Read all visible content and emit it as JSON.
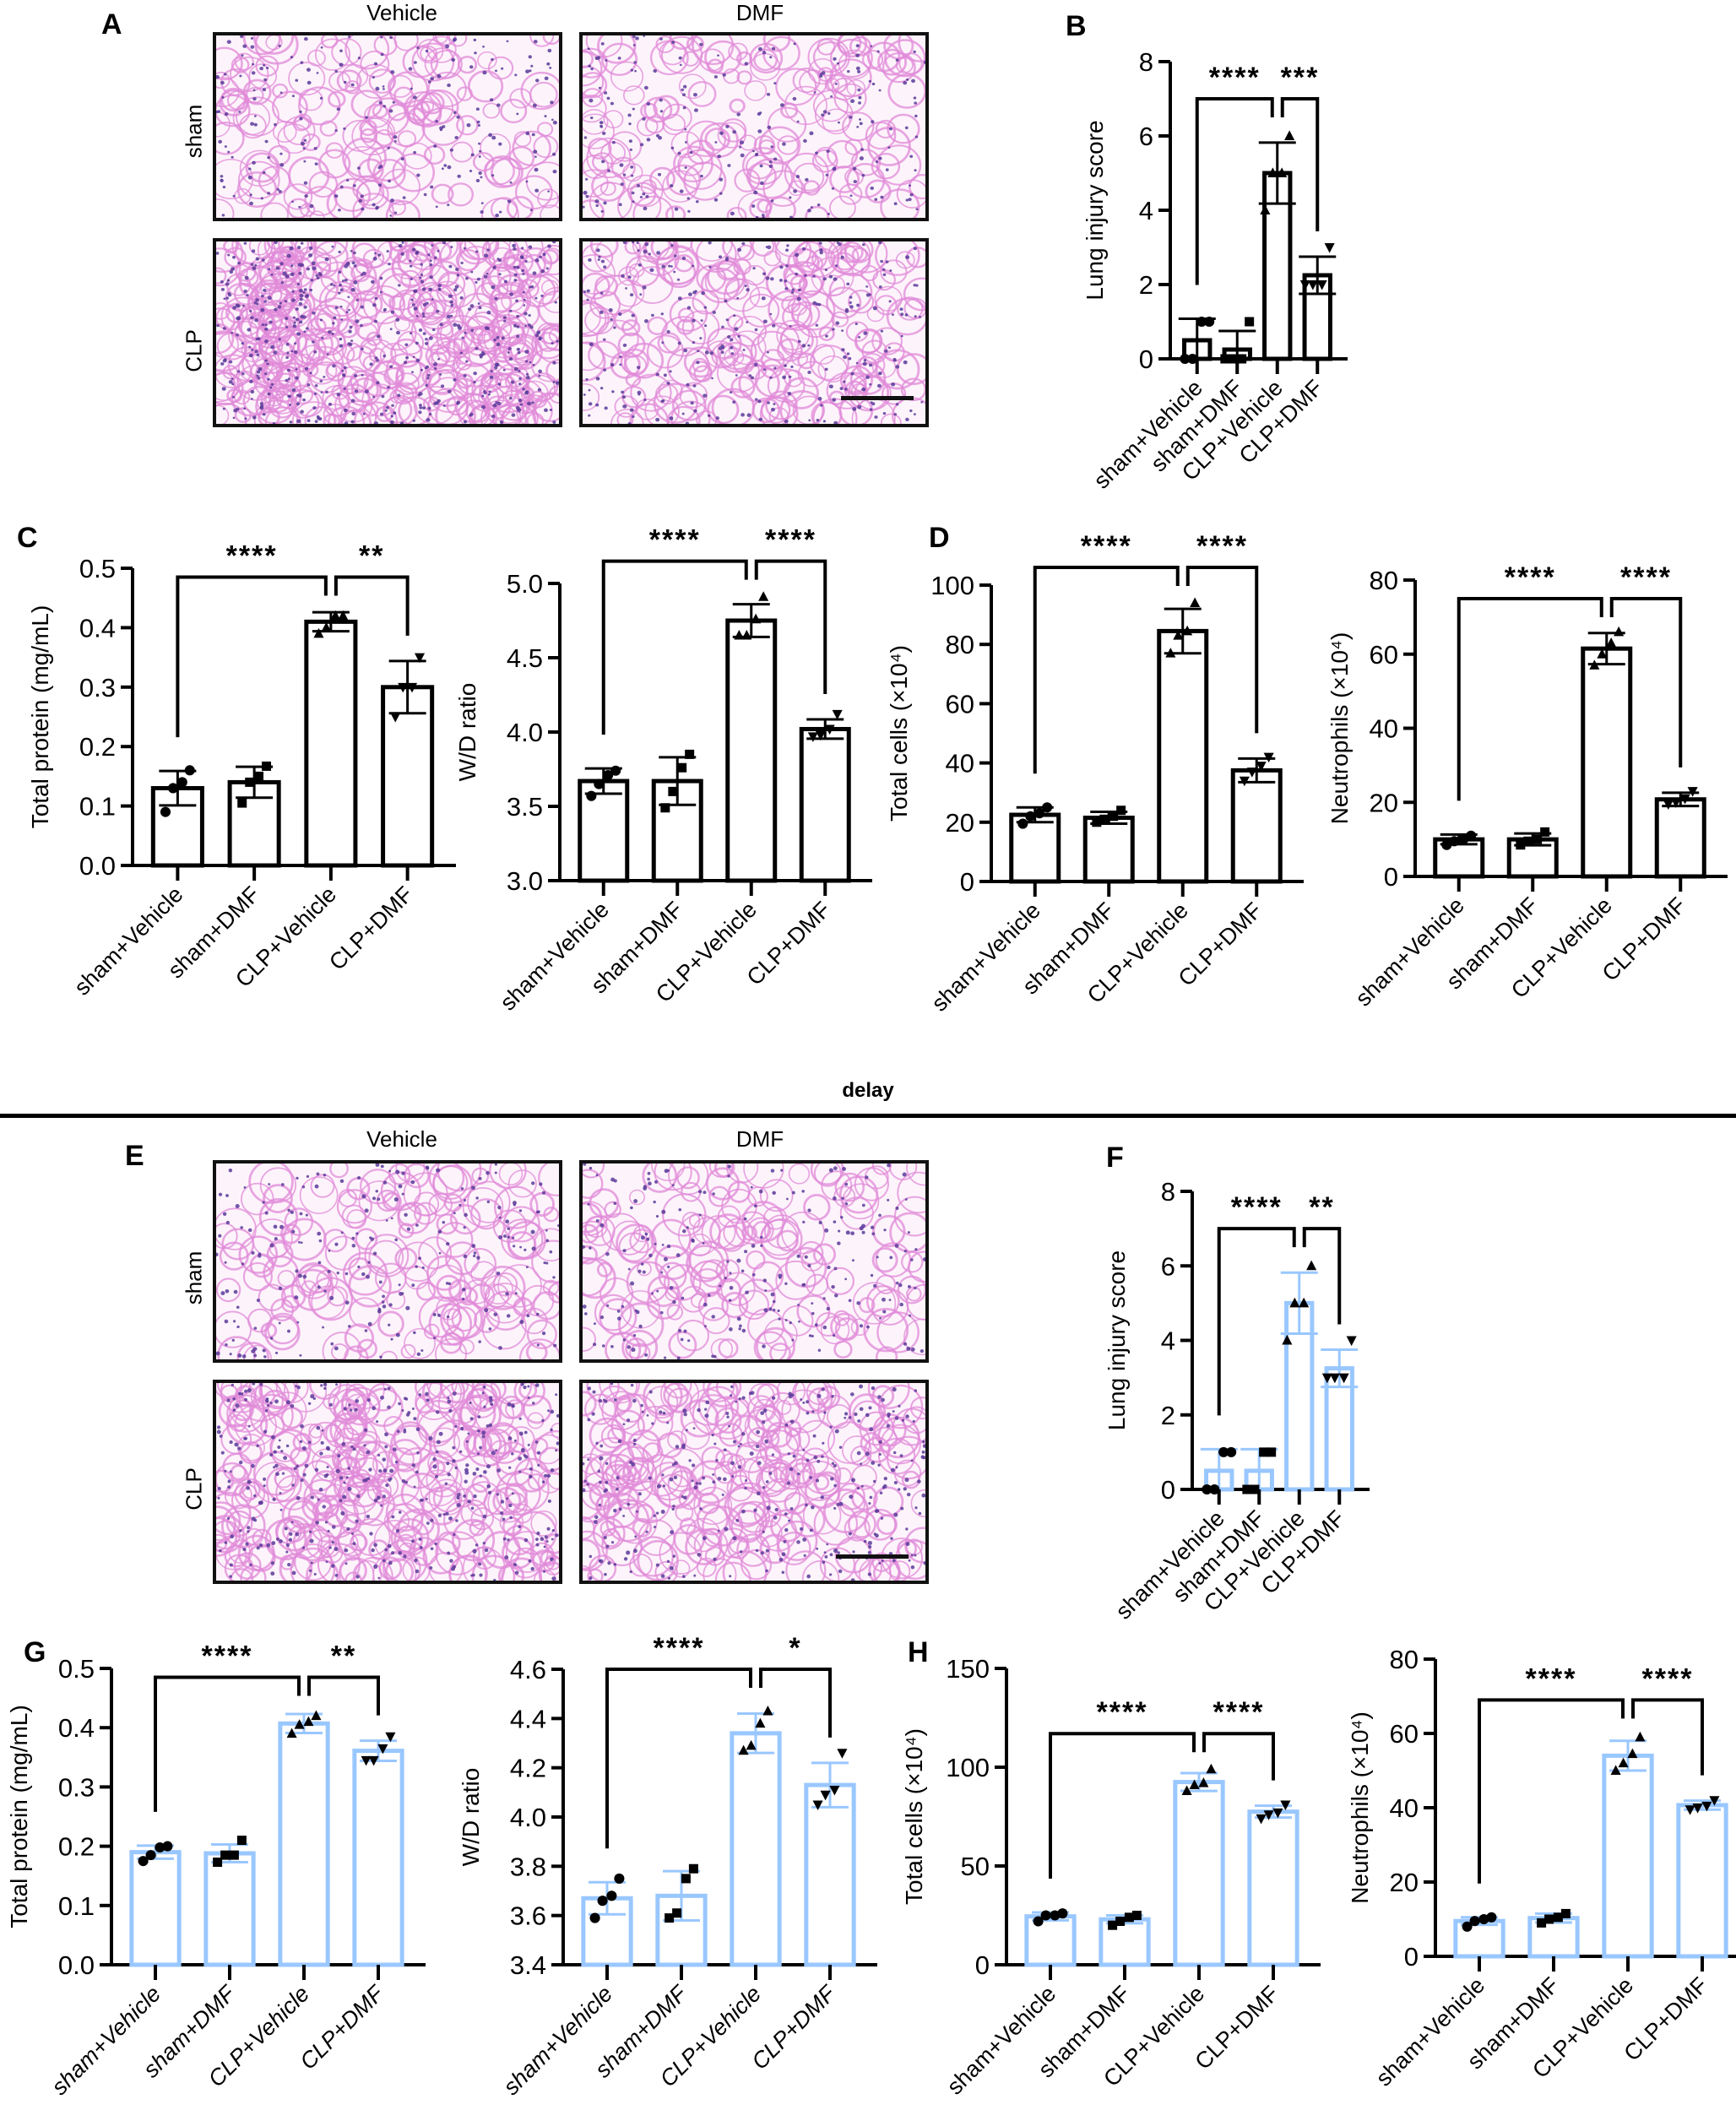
{
  "figure": {
    "panel_letters": [
      "A",
      "B",
      "C",
      "D",
      "E",
      "F",
      "G",
      "H"
    ],
    "histology_top": {
      "col_labels": [
        "Vehicle",
        "DMF"
      ],
      "row_labels": [
        "sham",
        "CLP"
      ]
    },
    "histology_bottom": {
      "col_labels": [
        "Vehicle",
        "DMF"
      ],
      "row_labels": [
        "sham",
        "CLP"
      ]
    },
    "section_divider_label": "delay",
    "colors": {
      "top_bars": "#000000",
      "bottom_bars": "#99c7ff",
      "points": "#000000"
    }
  },
  "chart_data": [
    {
      "id": "B",
      "type": "bar",
      "title": "",
      "ylabel": "Lung injury score",
      "xlabel": "",
      "categories": [
        "sham+Vehicle",
        "sham+DMF",
        "CLP+Vehicle",
        "CLP+DMF"
      ],
      "values": [
        0.5,
        0.25,
        5.0,
        2.25
      ],
      "sd": [
        0.58,
        0.5,
        0.82,
        0.5
      ],
      "points": [
        [
          0,
          0,
          1,
          1
        ],
        [
          0,
          0,
          0,
          1
        ],
        [
          4,
          5,
          5,
          6
        ],
        [
          2,
          2,
          2,
          3
        ]
      ],
      "markers": [
        "circle",
        "square",
        "triangle-up",
        "triangle-down"
      ],
      "ylim": [
        0,
        8
      ],
      "yticks": [
        0,
        2,
        4,
        6,
        8
      ],
      "ytick_labels": [
        "0",
        "2",
        "4",
        "6",
        "8"
      ],
      "significance": [
        {
          "from": 0,
          "to": 2,
          "label": "****",
          "level": 7.0
        },
        {
          "from": 2,
          "to": 3,
          "label": "***",
          "level": 7.0
        }
      ],
      "bar_color": "#000000",
      "grid": false,
      "italic_labels": false
    },
    {
      "id": "C1",
      "type": "bar",
      "ylabel": "Total protein (mg/mL)",
      "categories": [
        "sham+Vehicle",
        "sham+DMF",
        "CLP+Vehicle",
        "CLP+DMF"
      ],
      "values": [
        0.13,
        0.14,
        0.41,
        0.3
      ],
      "sd": [
        0.029,
        0.026,
        0.016,
        0.044
      ],
      "points": [
        [
          0.09,
          0.13,
          0.14,
          0.16
        ],
        [
          0.105,
          0.14,
          0.15,
          0.167
        ],
        [
          0.39,
          0.4,
          0.42,
          0.42
        ],
        [
          0.25,
          0.3,
          0.3,
          0.35
        ]
      ],
      "markers": [
        "circle",
        "square",
        "triangle-up",
        "triangle-down"
      ],
      "ylim": [
        0,
        0.5
      ],
      "yticks": [
        0,
        0.1,
        0.2,
        0.3,
        0.4,
        0.5
      ],
      "ytick_labels": [
        "0.0",
        "0.1",
        "0.2",
        "0.3",
        "0.4",
        "0.5"
      ],
      "significance": [
        {
          "from": 0,
          "to": 2,
          "label": "****",
          "level": 0.485
        },
        {
          "from": 2,
          "to": 3,
          "label": "**",
          "level": 0.485
        }
      ],
      "bar_color": "#000000",
      "grid": false,
      "italic_labels": false
    },
    {
      "id": "C2",
      "type": "bar",
      "ylabel": "W/D ratio",
      "categories": [
        "sham+Vehicle",
        "sham+DMF",
        "CLP+Vehicle",
        "CLP+DMF"
      ],
      "values": [
        3.67,
        3.67,
        4.75,
        4.02
      ],
      "sd": [
        0.085,
        0.16,
        0.11,
        0.065
      ],
      "points": [
        [
          3.57,
          3.65,
          3.71,
          3.74
        ],
        [
          3.49,
          3.6,
          3.76,
          3.85
        ],
        [
          4.65,
          4.65,
          4.76,
          4.91
        ],
        [
          3.97,
          3.98,
          4.02,
          4.12
        ]
      ],
      "markers": [
        "circle",
        "square",
        "triangle-up",
        "triangle-down"
      ],
      "ylim": [
        3.0,
        5.0
      ],
      "yticks": [
        3.0,
        3.5,
        4.0,
        4.5,
        5.0
      ],
      "ytick_labels": [
        "3.0",
        "3.5",
        "4.0",
        "4.5",
        "5.0"
      ],
      "significance": [
        {
          "from": 0,
          "to": 2,
          "label": "****",
          "level": 5.15
        },
        {
          "from": 2,
          "to": 3,
          "label": "****",
          "level": 5.15
        }
      ],
      "bar_color": "#000000",
      "grid": false,
      "italic_labels": false
    },
    {
      "id": "D1",
      "type": "bar",
      "ylabel": "Total cells (×10⁴)",
      "categories": [
        "sham+Vehicle",
        "sham+DMF",
        "CLP+Vehicle",
        "CLP+DMF"
      ],
      "values": [
        22.5,
        21.5,
        84.5,
        37.5
      ],
      "sd": [
        2.5,
        2.0,
        7.5,
        4.0
      ],
      "points": [
        [
          19.5,
          22,
          23,
          25
        ],
        [
          20,
          21,
          22,
          24
        ],
        [
          77,
          83,
          84.5,
          94
        ],
        [
          34,
          37,
          39,
          42
        ]
      ],
      "markers": [
        "circle",
        "square",
        "triangle-up",
        "triangle-down"
      ],
      "ylim": [
        0,
        100
      ],
      "yticks": [
        0,
        20,
        40,
        60,
        80,
        100
      ],
      "ytick_labels": [
        "0",
        "20",
        "40",
        "60",
        "80",
        "100"
      ],
      "significance": [
        {
          "from": 0,
          "to": 2,
          "label": "****",
          "level": 106
        },
        {
          "from": 2,
          "to": 3,
          "label": "****",
          "level": 106
        }
      ],
      "bar_color": "#000000",
      "grid": false,
      "italic_labels": false
    },
    {
      "id": "D2",
      "type": "bar",
      "ylabel": "Neutrophils (×10⁴)",
      "categories": [
        "sham+Vehicle",
        "sham+DMF",
        "CLP+Vehicle",
        "CLP+DMF"
      ],
      "values": [
        10.0,
        10.0,
        61.5,
        20.8
      ],
      "sd": [
        1.3,
        1.6,
        4.2,
        1.8
      ],
      "points": [
        [
          8.5,
          9.5,
          10,
          11
        ],
        [
          8.5,
          9.5,
          10,
          12
        ],
        [
          57,
          60,
          63,
          66
        ],
        [
          19.5,
          20,
          21,
          23
        ]
      ],
      "markers": [
        "circle",
        "square",
        "triangle-up",
        "triangle-down"
      ],
      "ylim": [
        0,
        80
      ],
      "yticks": [
        0,
        20,
        40,
        60,
        80
      ],
      "ytick_labels": [
        "0",
        "20",
        "40",
        "60",
        "80"
      ],
      "significance": [
        {
          "from": 0,
          "to": 2,
          "label": "****",
          "level": 75
        },
        {
          "from": 2,
          "to": 3,
          "label": "****",
          "level": 75
        }
      ],
      "bar_color": "#000000",
      "grid": false,
      "italic_labels": false
    },
    {
      "id": "F",
      "type": "bar",
      "ylabel": "Lung injury score",
      "categories": [
        "sham+Vehicle",
        "sham+DMF",
        "CLP+Vehicle",
        "CLP+DMF"
      ],
      "values": [
        0.5,
        0.5,
        5.0,
        3.25
      ],
      "sd": [
        0.58,
        0.58,
        0.82,
        0.5
      ],
      "points": [
        [
          0,
          0,
          1,
          1
        ],
        [
          0,
          0,
          1,
          1
        ],
        [
          4,
          5,
          5,
          6
        ],
        [
          3,
          3,
          3,
          4
        ]
      ],
      "markers": [
        "circle",
        "square",
        "triangle-up",
        "triangle-down"
      ],
      "ylim": [
        0,
        8
      ],
      "yticks": [
        0,
        2,
        4,
        6,
        8
      ],
      "ytick_labels": [
        "0",
        "2",
        "4",
        "6",
        "8"
      ],
      "significance": [
        {
          "from": 0,
          "to": 2,
          "label": "****",
          "level": 7.0
        },
        {
          "from": 2,
          "to": 3,
          "label": "**",
          "level": 7.0
        }
      ],
      "bar_color": "#99c7ff",
      "grid": false,
      "italic_labels": false
    },
    {
      "id": "G1",
      "type": "bar",
      "ylabel": "Total protein (mg/mL)",
      "categories": [
        "sham+Vehicle",
        "sham+DMF",
        "CLP+Vehicle",
        "CLP+DMF"
      ],
      "values": [
        0.19,
        0.188,
        0.407,
        0.361
      ],
      "sd": [
        0.011,
        0.015,
        0.016,
        0.017
      ],
      "points": [
        [
          0.175,
          0.185,
          0.198,
          0.2
        ],
        [
          0.173,
          0.185,
          0.185,
          0.21
        ],
        [
          0.39,
          0.405,
          0.41,
          0.42
        ],
        [
          0.345,
          0.345,
          0.365,
          0.385
        ]
      ],
      "markers": [
        "circle",
        "square",
        "triangle-up",
        "triangle-down"
      ],
      "ylim": [
        0,
        0.5
      ],
      "yticks": [
        0,
        0.1,
        0.2,
        0.3,
        0.4,
        0.5
      ],
      "ytick_labels": [
        "0.0",
        "0.1",
        "0.2",
        "0.3",
        "0.4",
        "0.5"
      ],
      "significance": [
        {
          "from": 0,
          "to": 2,
          "label": "****",
          "level": 0.485
        },
        {
          "from": 2,
          "to": 3,
          "label": "**",
          "level": 0.485
        }
      ],
      "bar_color": "#99c7ff",
      "grid": false,
      "italic_labels": true
    },
    {
      "id": "G2",
      "type": "bar",
      "ylabel": "W/D ratio",
      "categories": [
        "sham+Vehicle",
        "sham+DMF",
        "CLP+Vehicle",
        "CLP+DMF"
      ],
      "values": [
        3.67,
        3.68,
        4.34,
        4.13
      ],
      "sd": [
        0.065,
        0.1,
        0.08,
        0.09
      ],
      "points": [
        [
          3.59,
          3.66,
          3.68,
          3.75
        ],
        [
          3.59,
          3.61,
          3.75,
          3.79
        ],
        [
          4.27,
          4.29,
          4.38,
          4.43
        ],
        [
          4.05,
          4.09,
          4.11,
          4.26
        ]
      ],
      "markers": [
        "circle",
        "square",
        "triangle-up",
        "triangle-down"
      ],
      "ylim": [
        3.4,
        4.6
      ],
      "yticks": [
        3.4,
        3.6,
        3.8,
        4.0,
        4.2,
        4.4,
        4.6
      ],
      "ytick_labels": [
        "3.4",
        "3.6",
        "3.8",
        "4.0",
        "4.2",
        "4.4",
        "4.6"
      ],
      "significance": [
        {
          "from": 0,
          "to": 2,
          "label": "****",
          "level": 4.6
        },
        {
          "from": 2,
          "to": 3,
          "label": "*",
          "level": 4.6
        }
      ],
      "bar_color": "#99c7ff",
      "grid": false,
      "italic_labels": true
    },
    {
      "id": "H1",
      "type": "bar",
      "ylabel": "Total cells (×10⁴)",
      "categories": [
        "sham+Vehicle",
        "sham+DMF",
        "CLP+Vehicle",
        "CLP+DMF"
      ],
      "values": [
        24.5,
        23.0,
        92.5,
        77.5
      ],
      "sd": [
        2.0,
        2.0,
        4.5,
        3.0
      ],
      "points": [
        [
          22,
          25,
          25,
          26
        ],
        [
          20,
          22,
          24,
          25
        ],
        [
          88,
          91,
          92,
          99
        ],
        [
          74,
          76,
          77,
          81
        ]
      ],
      "markers": [
        "circle",
        "square",
        "triangle-up",
        "triangle-down"
      ],
      "ylim": [
        0,
        150
      ],
      "yticks": [
        0,
        50,
        100,
        150
      ],
      "ytick_labels": [
        "0",
        "50",
        "100",
        "150"
      ],
      "significance": [
        {
          "from": 0,
          "to": 2,
          "label": "****",
          "level": 117
        },
        {
          "from": 2,
          "to": 3,
          "label": "****",
          "level": 117
        }
      ],
      "bar_color": "#99c7ff",
      "grid": false,
      "italic_labels": false
    },
    {
      "id": "H2",
      "type": "bar",
      "ylabel": "Neutrophils (×10⁴)",
      "categories": [
        "sham+Vehicle",
        "sham+DMF",
        "CLP+Vehicle",
        "CLP+DMF"
      ],
      "values": [
        9.5,
        10.3,
        54.0,
        40.7
      ],
      "sd": [
        1.0,
        1.2,
        4.0,
        1.2
      ],
      "points": [
        [
          8,
          9.5,
          10,
          10.5
        ],
        [
          9,
          10,
          10.5,
          11.5
        ],
        [
          50,
          52,
          54.5,
          59
        ],
        [
          39.5,
          40,
          40.5,
          42
        ]
      ],
      "markers": [
        "circle",
        "square",
        "triangle-up",
        "triangle-down"
      ],
      "ylim": [
        0,
        80
      ],
      "yticks": [
        0,
        20,
        40,
        60,
        80
      ],
      "ytick_labels": [
        "0",
        "20",
        "40",
        "60",
        "80"
      ],
      "significance": [
        {
          "from": 0,
          "to": 2,
          "label": "****",
          "level": 69
        },
        {
          "from": 2,
          "to": 3,
          "label": "****",
          "level": 69
        }
      ],
      "bar_color": "#99c7ff",
      "grid": false,
      "italic_labels": false
    }
  ]
}
